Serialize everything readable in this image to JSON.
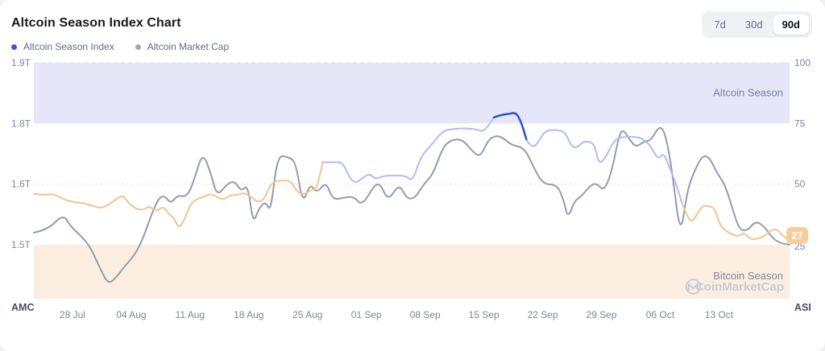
{
  "header": {
    "title": "Altcoin Season Index Chart",
    "legend": [
      {
        "label": "Altcoin Season Index",
        "color": "#3c56d5"
      },
      {
        "label": "Altcoin Market Cap",
        "color": "#a0a9bb"
      }
    ],
    "range_buttons": [
      {
        "label": "7d",
        "active": false
      },
      {
        "label": "30d",
        "active": false
      },
      {
        "label": "90d",
        "active": true
      }
    ]
  },
  "chart_data": {
    "type": "line",
    "title": "Altcoin Season Index Chart",
    "x_tick_labels": [
      "28 Jul",
      "04 Aug",
      "11 Aug",
      "18 Aug",
      "25 Aug",
      "01 Sep",
      "08 Sep",
      "15 Sep",
      "22 Sep",
      "29 Sep",
      "06 Oct",
      "13 Oct"
    ],
    "x_tick_days": [
      4.6,
      11.6,
      18.6,
      25.6,
      32.6,
      39.6,
      46.6,
      53.6,
      60.6,
      67.6,
      74.6,
      81.6
    ],
    "left_axis": {
      "name": "AMC",
      "tick_labels": [
        "1.9T",
        "1.8T",
        "1.6T",
        "1.5T"
      ],
      "tick_values": [
        1.9,
        1.8,
        1.6,
        1.5
      ]
    },
    "right_axis": {
      "name": "ASI",
      "tick_labels": [
        "100",
        "75",
        "50",
        "25"
      ],
      "tick_values": [
        100,
        75,
        50,
        25
      ],
      "range": [
        0,
        100
      ]
    },
    "regions": [
      {
        "label": "Altcoin Season",
        "axis": "right",
        "from": 75,
        "to": 100,
        "color": "#e6e6f9",
        "label_color": "#7a7fa0"
      },
      {
        "label": "Bitcoin Season",
        "axis": "right",
        "from": 3,
        "to": 25,
        "color": "#fbeee1",
        "label_color": "#80879b"
      }
    ],
    "grid": {
      "dashed_at_value": 100,
      "dotted_at_value": 50,
      "dashed_color": "#dcdfe6",
      "dotted_color": "#e8d8ce"
    },
    "current_badge": {
      "value": "27",
      "bg_color": "#f8cd97",
      "text_color": "#ffffff"
    },
    "watermark": {
      "text": "CoinMarketCap",
      "color": "#c7ccd6"
    },
    "series": [
      {
        "name": "Altcoin Season Index",
        "axis": "right",
        "current": 27,
        "palette": {
          "low": "#f2c48f",
          "mid": "#aebdf2",
          "high": "#2c50cb"
        },
        "color_segments": [
          {
            "to_day": 33.9,
            "color": "low"
          },
          {
            "to_day": 54.5,
            "color": "mid"
          },
          {
            "to_day": 58.3,
            "color": "high"
          },
          {
            "to_day": 76.6,
            "color": "mid"
          },
          {
            "to_day": 90,
            "color": "low"
          }
        ],
        "points": [
          [
            0,
            46
          ],
          [
            1.3,
            45.5
          ],
          [
            2.2,
            46
          ],
          [
            3.2,
            44.5
          ],
          [
            4.1,
            43
          ],
          [
            5.1,
            42.5
          ],
          [
            6.1,
            42
          ],
          [
            7,
            41
          ],
          [
            8,
            40
          ],
          [
            8.9,
            41.5
          ],
          [
            9.9,
            44
          ],
          [
            10.6,
            45.5
          ],
          [
            11.3,
            42
          ],
          [
            12.3,
            39.5
          ],
          [
            13.1,
            39.5
          ],
          [
            13.8,
            41
          ],
          [
            14.5,
            38.5
          ],
          [
            15.4,
            41
          ],
          [
            16.1,
            37.5
          ],
          [
            16.7,
            36
          ],
          [
            17.3,
            31.5
          ],
          [
            18,
            36
          ],
          [
            18.7,
            42
          ],
          [
            19.5,
            44
          ],
          [
            20.4,
            45
          ],
          [
            21.1,
            46
          ],
          [
            21.9,
            44.5
          ],
          [
            22.6,
            43.5
          ],
          [
            23.4,
            45.5
          ],
          [
            24.3,
            45.5
          ],
          [
            25,
            46.5
          ],
          [
            25.8,
            45
          ],
          [
            26.6,
            42.5
          ],
          [
            27.4,
            43.5
          ],
          [
            28.2,
            50
          ],
          [
            29.1,
            51.5
          ],
          [
            30.6,
            51.5
          ],
          [
            31.3,
            47
          ],
          [
            32.1,
            45.5
          ],
          [
            33,
            47.5
          ],
          [
            33.7,
            48
          ],
          [
            34.4,
            59
          ],
          [
            35.6,
            59
          ],
          [
            36.8,
            59
          ],
          [
            37.6,
            52.5
          ],
          [
            38.3,
            50.5
          ],
          [
            39,
            52
          ],
          [
            39.9,
            54.5
          ],
          [
            40.7,
            52
          ],
          [
            41.7,
            53.5
          ],
          [
            43,
            53.5
          ],
          [
            44.3,
            53.5
          ],
          [
            45.1,
            51
          ],
          [
            46.1,
            61.5
          ],
          [
            47.2,
            65.5
          ],
          [
            48.7,
            72
          ],
          [
            50,
            72.8
          ],
          [
            51.5,
            73
          ],
          [
            52.8,
            72.5
          ],
          [
            53.6,
            71.5
          ],
          [
            54.8,
            77.5
          ],
          [
            55.6,
            78.5
          ],
          [
            56.7,
            79
          ],
          [
            57.4,
            79.5
          ],
          [
            58,
            76
          ],
          [
            58.7,
            68
          ],
          [
            59.4,
            64.5
          ],
          [
            60.2,
            68
          ],
          [
            60.9,
            72
          ],
          [
            62.1,
            72.5
          ],
          [
            63.3,
            71.5
          ],
          [
            64,
            65.5
          ],
          [
            64.7,
            65
          ],
          [
            65.4,
            67.5
          ],
          [
            66.2,
            67.5
          ],
          [
            66.8,
            66
          ],
          [
            67.3,
            58
          ],
          [
            68.1,
            61
          ],
          [
            68.8,
            66
          ],
          [
            69.5,
            69
          ],
          [
            70.5,
            69.5
          ],
          [
            71.4,
            69.5
          ],
          [
            72.4,
            69
          ],
          [
            73.4,
            66
          ],
          [
            74,
            62
          ],
          [
            74.5,
            60.5
          ],
          [
            75,
            63
          ],
          [
            75.8,
            56
          ],
          [
            76.5,
            50
          ],
          [
            77.2,
            42
          ],
          [
            77.9,
            36
          ],
          [
            78.4,
            34.5
          ],
          [
            78.9,
            37
          ],
          [
            79.6,
            41
          ],
          [
            80.4,
            41
          ],
          [
            81.1,
            40
          ],
          [
            81.7,
            33
          ],
          [
            82.5,
            30.5
          ],
          [
            83.3,
            29
          ],
          [
            83.9,
            28.5
          ],
          [
            84.6,
            30
          ],
          [
            85.4,
            27
          ],
          [
            86.2,
            27.5
          ],
          [
            87,
            28.5
          ],
          [
            87.8,
            31
          ],
          [
            88.5,
            31.5
          ],
          [
            89.2,
            28.5
          ],
          [
            90,
            27
          ]
        ]
      },
      {
        "name": "Altcoin Market Cap",
        "axis": "left",
        "unit": "T",
        "color": "#949baa",
        "points": [
          [
            0,
            1.52
          ],
          [
            1.7,
            1.525
          ],
          [
            3.5,
            1.551
          ],
          [
            4.4,
            1.53
          ],
          [
            5.6,
            1.515
          ],
          [
            6.7,
            1.497
          ],
          [
            8,
            1.458
          ],
          [
            8.9,
            1.435
          ],
          [
            9.9,
            1.448
          ],
          [
            11,
            1.468
          ],
          [
            12,
            1.483
          ],
          [
            13,
            1.51
          ],
          [
            14,
            1.55
          ],
          [
            14.9,
            1.578
          ],
          [
            15.6,
            1.581
          ],
          [
            16.3,
            1.568
          ],
          [
            17.1,
            1.582
          ],
          [
            18.3,
            1.579
          ],
          [
            19.2,
            1.625
          ],
          [
            20.1,
            1.71
          ],
          [
            21.1,
            1.637
          ],
          [
            21.8,
            1.58
          ],
          [
            23,
            1.601
          ],
          [
            23.9,
            1.612
          ],
          [
            24.7,
            1.588
          ],
          [
            25.5,
            1.6
          ],
          [
            26.1,
            1.534
          ],
          [
            26.8,
            1.56
          ],
          [
            27.6,
            1.572
          ],
          [
            28.2,
            1.553
          ],
          [
            29,
            1.698
          ],
          [
            30.2,
            1.694
          ],
          [
            31.2,
            1.678
          ],
          [
            32,
            1.566
          ],
          [
            32.9,
            1.604
          ],
          [
            33.7,
            1.585
          ],
          [
            34.8,
            1.61
          ],
          [
            35.6,
            1.574
          ],
          [
            36.9,
            1.578
          ],
          [
            38.1,
            1.58
          ],
          [
            39.1,
            1.564
          ],
          [
            40.6,
            1.6
          ],
          [
            41.3,
            1.6
          ],
          [
            42.2,
            1.572
          ],
          [
            43.5,
            1.603
          ],
          [
            44.4,
            1.576
          ],
          [
            45.4,
            1.577
          ],
          [
            46.4,
            1.6
          ],
          [
            47.5,
            1.632
          ],
          [
            48.7,
            1.725
          ],
          [
            49.6,
            1.75
          ],
          [
            51,
            1.755
          ],
          [
            52.3,
            1.71
          ],
          [
            53.2,
            1.693
          ],
          [
            54.2,
            1.757
          ],
          [
            55.5,
            1.768
          ],
          [
            56.8,
            1.734
          ],
          [
            58.4,
            1.725
          ],
          [
            59.4,
            1.666
          ],
          [
            60.6,
            1.6
          ],
          [
            62.3,
            1.6
          ],
          [
            63.1,
            1.574
          ],
          [
            63.6,
            1.543
          ],
          [
            64.4,
            1.573
          ],
          [
            65.2,
            1.58
          ],
          [
            66.4,
            1.6
          ],
          [
            67.1,
            1.602
          ],
          [
            67.9,
            1.589
          ],
          [
            68.8,
            1.64
          ],
          [
            69.6,
            1.755
          ],
          [
            70.1,
            1.79
          ],
          [
            70.9,
            1.755
          ],
          [
            71.7,
            1.726
          ],
          [
            72.6,
            1.745
          ],
          [
            73.5,
            1.75
          ],
          [
            74.5,
            1.8
          ],
          [
            75.2,
            1.775
          ],
          [
            76,
            1.65
          ],
          [
            77,
            1.51
          ],
          [
            77.8,
            1.59
          ],
          [
            78.8,
            1.655
          ],
          [
            79.7,
            1.7
          ],
          [
            80.5,
            1.69
          ],
          [
            81.4,
            1.636
          ],
          [
            82.3,
            1.6
          ],
          [
            83.2,
            1.56
          ],
          [
            84,
            1.525
          ],
          [
            85,
            1.523
          ],
          [
            85.9,
            1.539
          ],
          [
            86.9,
            1.532
          ],
          [
            87.9,
            1.512
          ],
          [
            88.8,
            1.503
          ],
          [
            90,
            1.5
          ]
        ]
      }
    ]
  }
}
